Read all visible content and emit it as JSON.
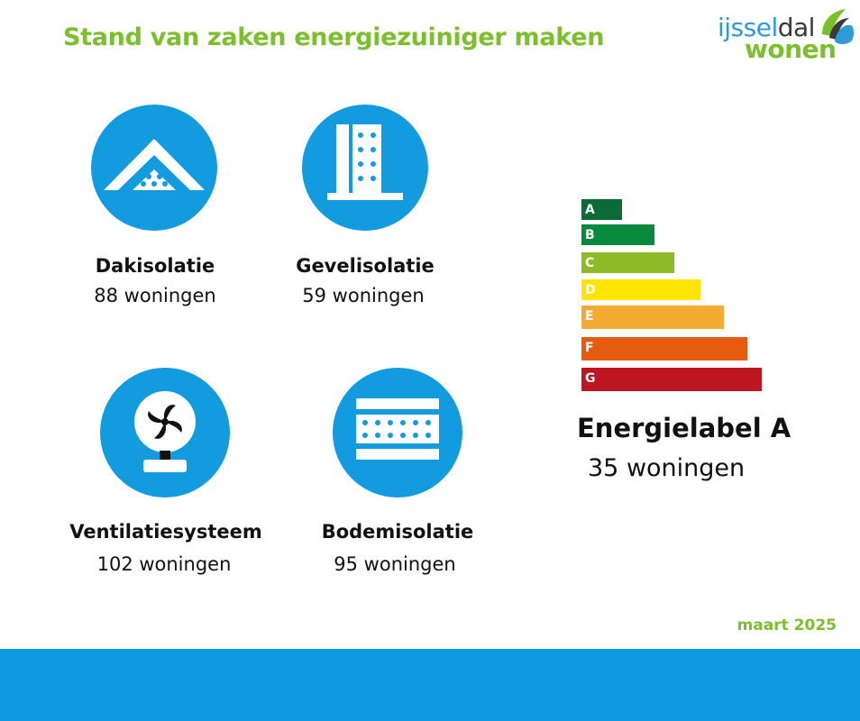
{
  "header": {
    "title": "Stand van zaken energiezuiniger maken"
  },
  "logo": {
    "line1_a": "ijssel",
    "line1_b": "dal",
    "line2": "wonen"
  },
  "measures": [
    {
      "label": "Dakisolatie",
      "count": "88 woningen",
      "icon": "roof-insulation-icon"
    },
    {
      "label": "Gevelisolatie",
      "count": "59 woningen",
      "icon": "facade-insulation-icon"
    },
    {
      "label": "Ventilatiesysteem",
      "count": "102 woningen",
      "icon": "ventilation-fan-icon"
    },
    {
      "label": "Bodemisolatie",
      "count": "95 woningen",
      "icon": "floor-insulation-icon"
    }
  ],
  "energy_label": {
    "classes": [
      {
        "letter": "A",
        "color": "#0a6b36"
      },
      {
        "letter": "B",
        "color": "#078a3e"
      },
      {
        "letter": "C",
        "color": "#8dbb25"
      },
      {
        "letter": "D",
        "color": "#ffe500"
      },
      {
        "letter": "E",
        "color": "#f5ab32"
      },
      {
        "letter": "F",
        "color": "#e65b10"
      },
      {
        "letter": "G",
        "color": "#bd1622"
      }
    ],
    "title": "Energielabel A",
    "count": "35 woningen"
  },
  "date": "maart 2025",
  "colors": {
    "accent_green": "#7cbf2c",
    "accent_blue": "#139be0"
  }
}
